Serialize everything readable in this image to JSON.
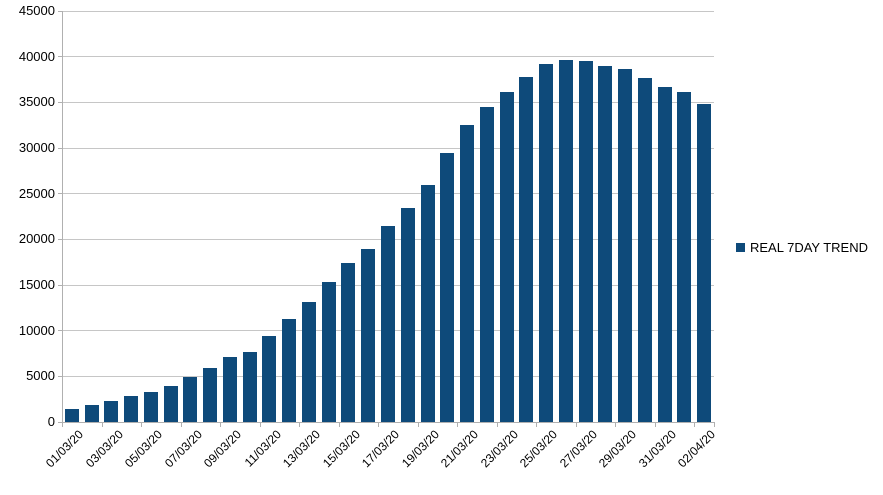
{
  "chart_data": {
    "type": "bar",
    "title": "",
    "xlabel": "",
    "ylabel": "",
    "categories": [
      "01/03/20",
      "02/03/20",
      "03/03/20",
      "04/03/20",
      "05/03/20",
      "06/03/20",
      "07/03/20",
      "08/03/20",
      "09/03/20",
      "10/03/20",
      "11/03/20",
      "12/03/20",
      "13/03/20",
      "14/03/20",
      "15/03/20",
      "16/03/20",
      "17/03/20",
      "18/03/20",
      "19/03/20",
      "20/03/20",
      "21/03/20",
      "22/03/20",
      "23/03/20",
      "24/03/20",
      "25/03/20",
      "26/03/20",
      "27/03/20",
      "28/03/20",
      "29/03/20",
      "30/03/20",
      "31/03/20",
      "01/04/20",
      "02/04/20"
    ],
    "series": [
      {
        "name": "REAL 7DAY TREND",
        "values": [
          1400,
          1900,
          2300,
          2800,
          3300,
          3900,
          4900,
          5900,
          7100,
          7700,
          9400,
          11300,
          13100,
          15300,
          17400,
          18900,
          21500,
          23400,
          25900,
          29500,
          32500,
          34500,
          36100,
          37800,
          39200,
          39600,
          39500,
          39000,
          38600,
          37700,
          36700,
          36100,
          34800
        ]
      }
    ],
    "ylim": [
      0,
      45000
    ],
    "yticks": [
      0,
      5000,
      10000,
      15000,
      20000,
      25000,
      30000,
      35000,
      40000,
      45000
    ],
    "x_label_every": 2,
    "x_label_rotation_deg": -45,
    "grid": true,
    "legend_position": "right-middle",
    "bar_color": "#0e4a7a",
    "grid_color": "#c6c6c6",
    "axis_color": "#b0b0b0",
    "text_color": "#000000",
    "background_color": "#ffffff"
  },
  "legend": {
    "label": "REAL 7DAY TREND"
  }
}
